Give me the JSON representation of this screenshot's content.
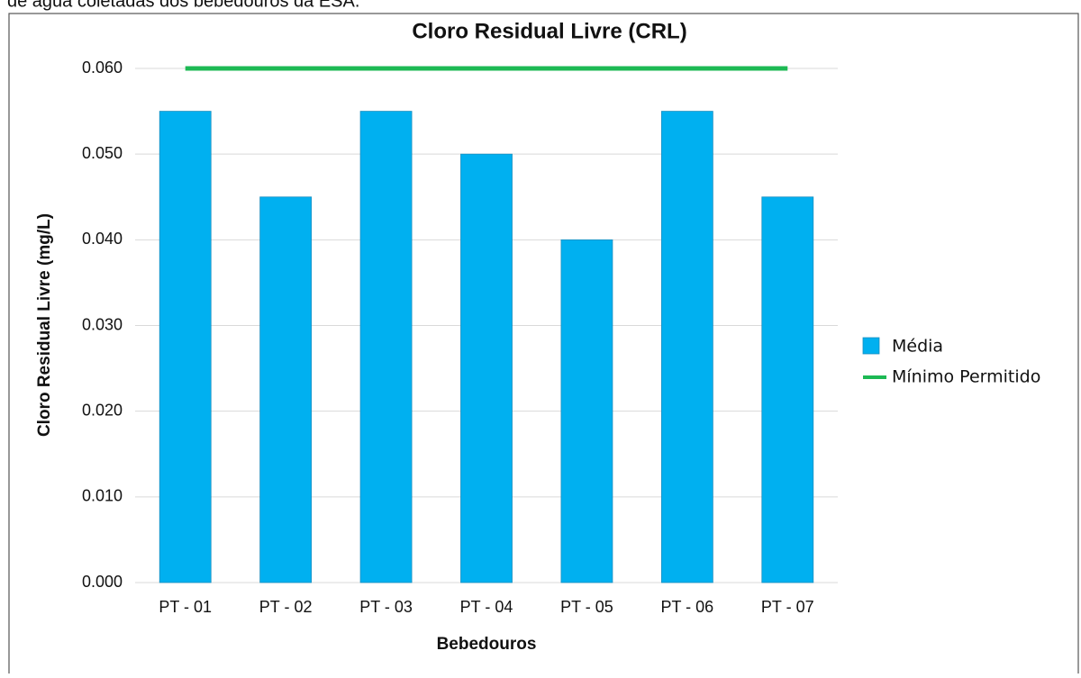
{
  "caption": "de água coletadas dos bebedouros da ESA.",
  "chart_data": {
    "type": "bar",
    "title": "Cloro Residual Livre (CRL)",
    "x_label": "Bebedouros",
    "y_label": "Cloro Residual Livre (mg/L)",
    "categories": [
      "PT - 01",
      "PT - 02",
      "PT - 03",
      "PT - 04",
      "PT - 05",
      "PT - 06",
      "PT - 07"
    ],
    "series": [
      {
        "name": "Média",
        "type": "bar",
        "color": "#00b0f0",
        "values": [
          0.055,
          0.045,
          0.055,
          0.05,
          0.04,
          0.055,
          0.045
        ]
      },
      {
        "name": "Mínimo Permitido",
        "type": "line",
        "color": "#1db954",
        "values": [
          0.06,
          0.06,
          0.06,
          0.06,
          0.06,
          0.06,
          0.06
        ]
      }
    ],
    "ylim": [
      0,
      0.06
    ],
    "yticks": [
      {
        "value": 0,
        "label": "0.000"
      },
      {
        "value": 0.01,
        "label": "0.010"
      },
      {
        "value": 0.02,
        "label": "0.020"
      },
      {
        "value": 0.03,
        "label": "0.030"
      },
      {
        "value": 0.04,
        "label": "0.040"
      },
      {
        "value": 0.05,
        "label": "0.050"
      },
      {
        "value": 0.06,
        "label": "0.060"
      }
    ],
    "grid": true,
    "legend": "right"
  }
}
